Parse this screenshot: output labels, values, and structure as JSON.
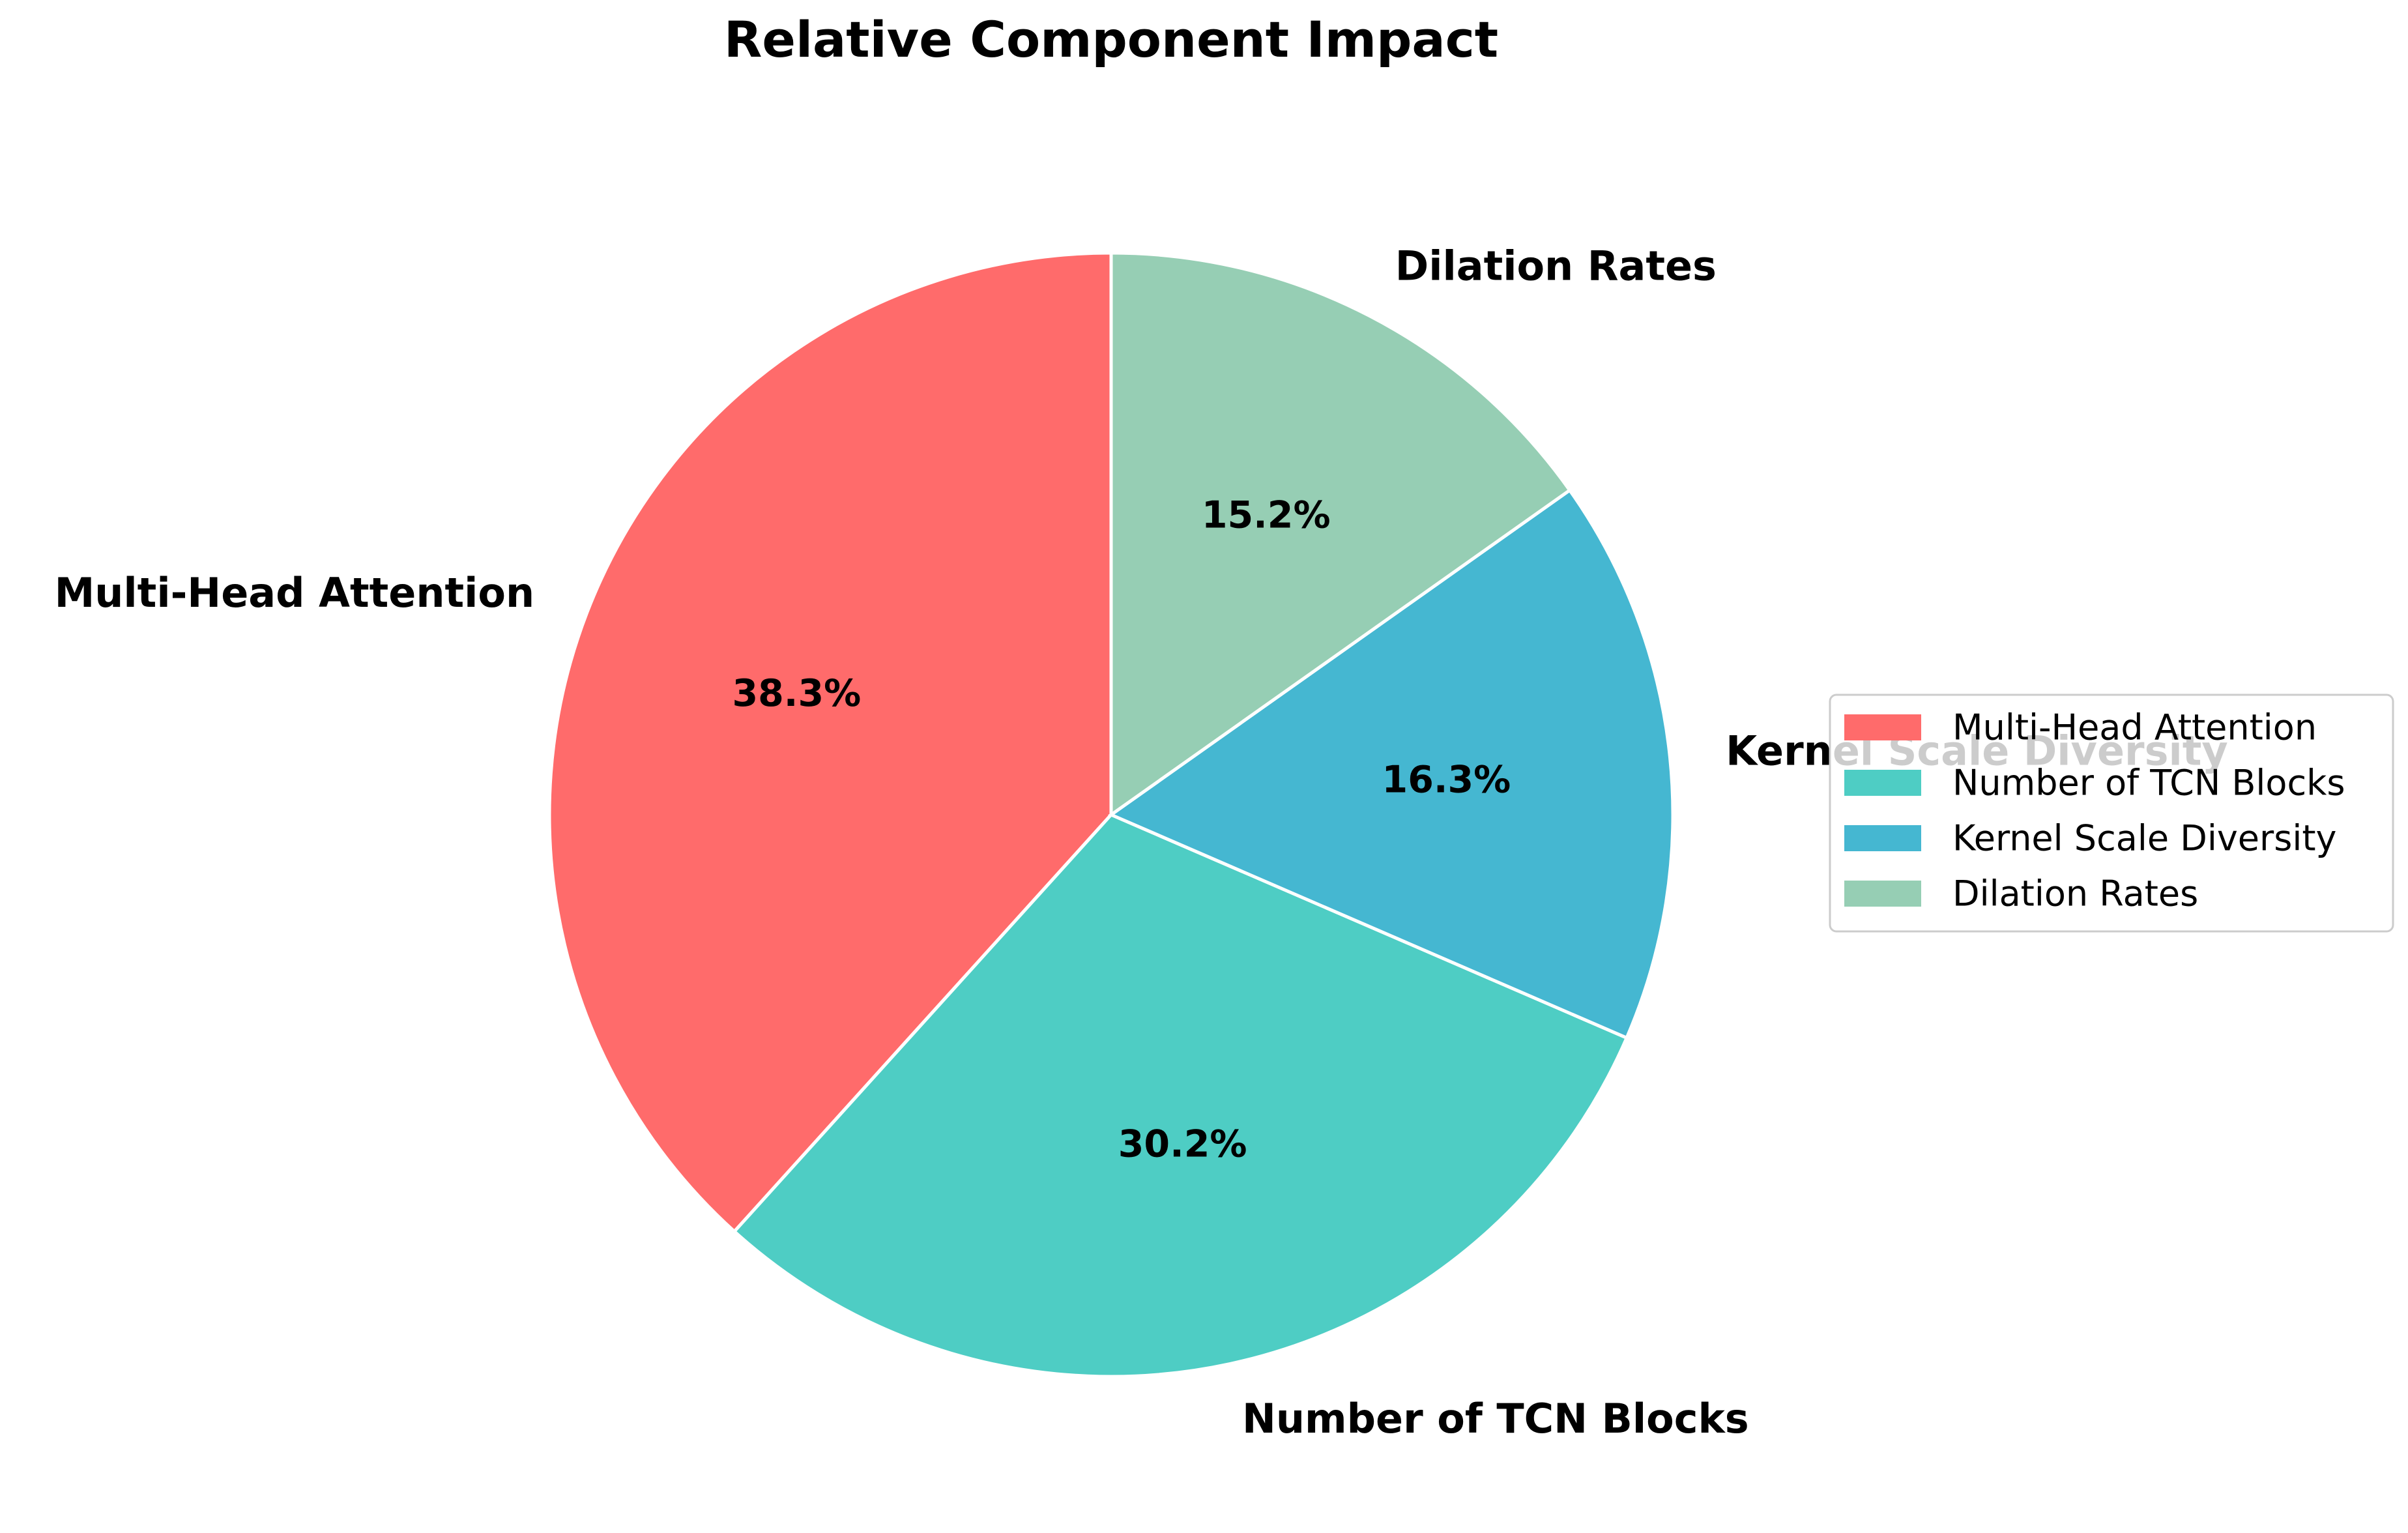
{
  "chart_data": {
    "type": "pie",
    "title": "Relative Component Impact",
    "start_angle_deg": 90,
    "direction": "counterclockwise",
    "slices": [
      {
        "label": "Multi-Head Attention",
        "value": 38.3,
        "pct_label": "38.3%",
        "color": "#ff6b6b"
      },
      {
        "label": "Number of TCN Blocks",
        "value": 30.2,
        "pct_label": "30.2%",
        "color": "#4ecdc4"
      },
      {
        "label": "Kernel Scale Diversity",
        "value": 16.3,
        "pct_label": "16.3%",
        "color": "#45b7d1"
      },
      {
        "label": "Dilation Rates",
        "value": 15.2,
        "pct_label": "15.2%",
        "color": "#96ceb4"
      }
    ],
    "legend": {
      "placement": "center-right",
      "entries": [
        "Multi-Head Attention",
        "Number of TCN Blocks",
        "Kernel Scale Diversity",
        "Dilation Rates"
      ]
    },
    "edge_color": "#ffffff"
  }
}
